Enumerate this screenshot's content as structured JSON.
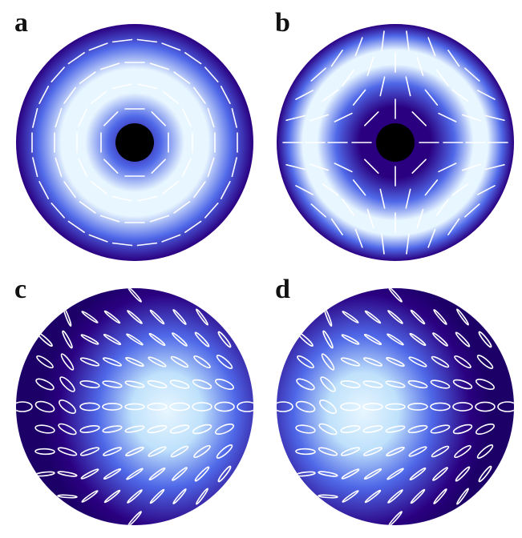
{
  "figure": {
    "panels": [
      {
        "label": "a",
        "pattern": "azimuthal",
        "intensity": "ring",
        "center_core": "dark"
      },
      {
        "label": "b",
        "pattern": "hyperbolic",
        "intensity": "ring",
        "center_core": "dark"
      },
      {
        "label": "c",
        "pattern": "ellipses-bright-center-shifted-right",
        "intensity": "off-axis-right"
      },
      {
        "label": "d",
        "pattern": "ellipses-bright-center-shifted-left",
        "intensity": "off-axis-left"
      }
    ],
    "colormap": {
      "low": "#2a0080",
      "mid": "#4f68e8",
      "high": "#e8f6ff",
      "core": "#000000",
      "glyph": "#ffffff"
    }
  }
}
